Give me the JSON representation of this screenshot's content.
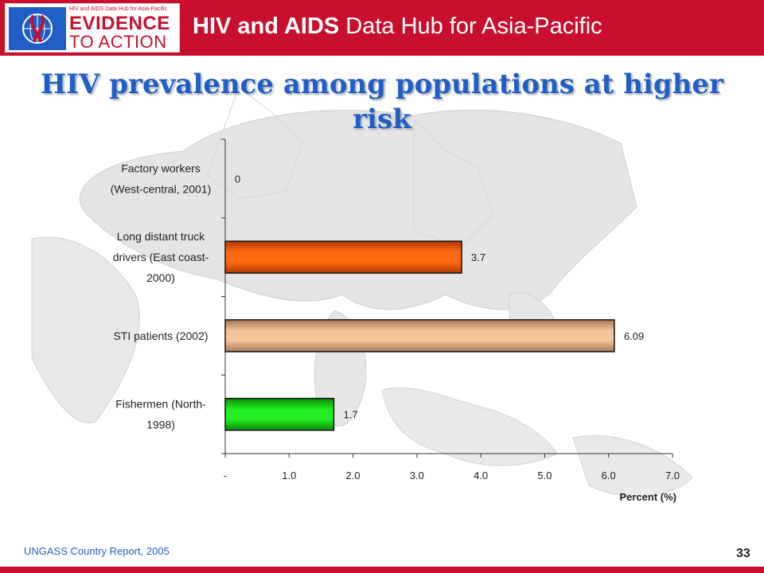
{
  "header": {
    "logo_tagline": "HIV and AIDS Data Hub for Asia-Pacific",
    "logo_line1": "EVIDENCE",
    "logo_line2": "TO ACTION",
    "title_bold": "HIV and AIDS",
    "title_rest": " Data Hub for Asia-Pacific",
    "colors": {
      "band": "#c8102e",
      "title_text": "#ffffff"
    }
  },
  "slide": {
    "title": "HIV prevalence among populations at higher risk",
    "title_color": "#1f5fc7"
  },
  "footer": {
    "source": "UNGASS Country Report, 2005",
    "page_number": "33"
  },
  "chart_data": {
    "type": "bar",
    "orientation": "horizontal",
    "categories": [
      [
        "Factory workers",
        "(West-central, 2001)"
      ],
      [
        "Long distant truck",
        "drivers (East coast-",
        "2000)"
      ],
      [
        "STI patients (2002)"
      ],
      [
        "Fishermen (North-",
        "1998)"
      ]
    ],
    "values": [
      0,
      3.7,
      6.09,
      1.7
    ],
    "data_labels": [
      "0",
      "3.7",
      "6.09",
      "1.7"
    ],
    "bar_colors": [
      "#bbbbbb",
      "#ff6a10",
      "#f5c49a",
      "#22ee22"
    ],
    "bar_colors_dark": [
      "#999999",
      "#b23a00",
      "#a37a58",
      "#0a8a0a"
    ],
    "xlabel": "Percent (%)",
    "ylabel": "",
    "xlim": [
      0,
      7
    ],
    "xticks": [
      0,
      1,
      2,
      3,
      4,
      5,
      6,
      7
    ],
    "xtick_labels": [
      "-",
      "1.0",
      "2.0",
      "3.0",
      "4.0",
      "5.0",
      "6.0",
      "7.0"
    ],
    "grid": false,
    "legend": "none"
  }
}
